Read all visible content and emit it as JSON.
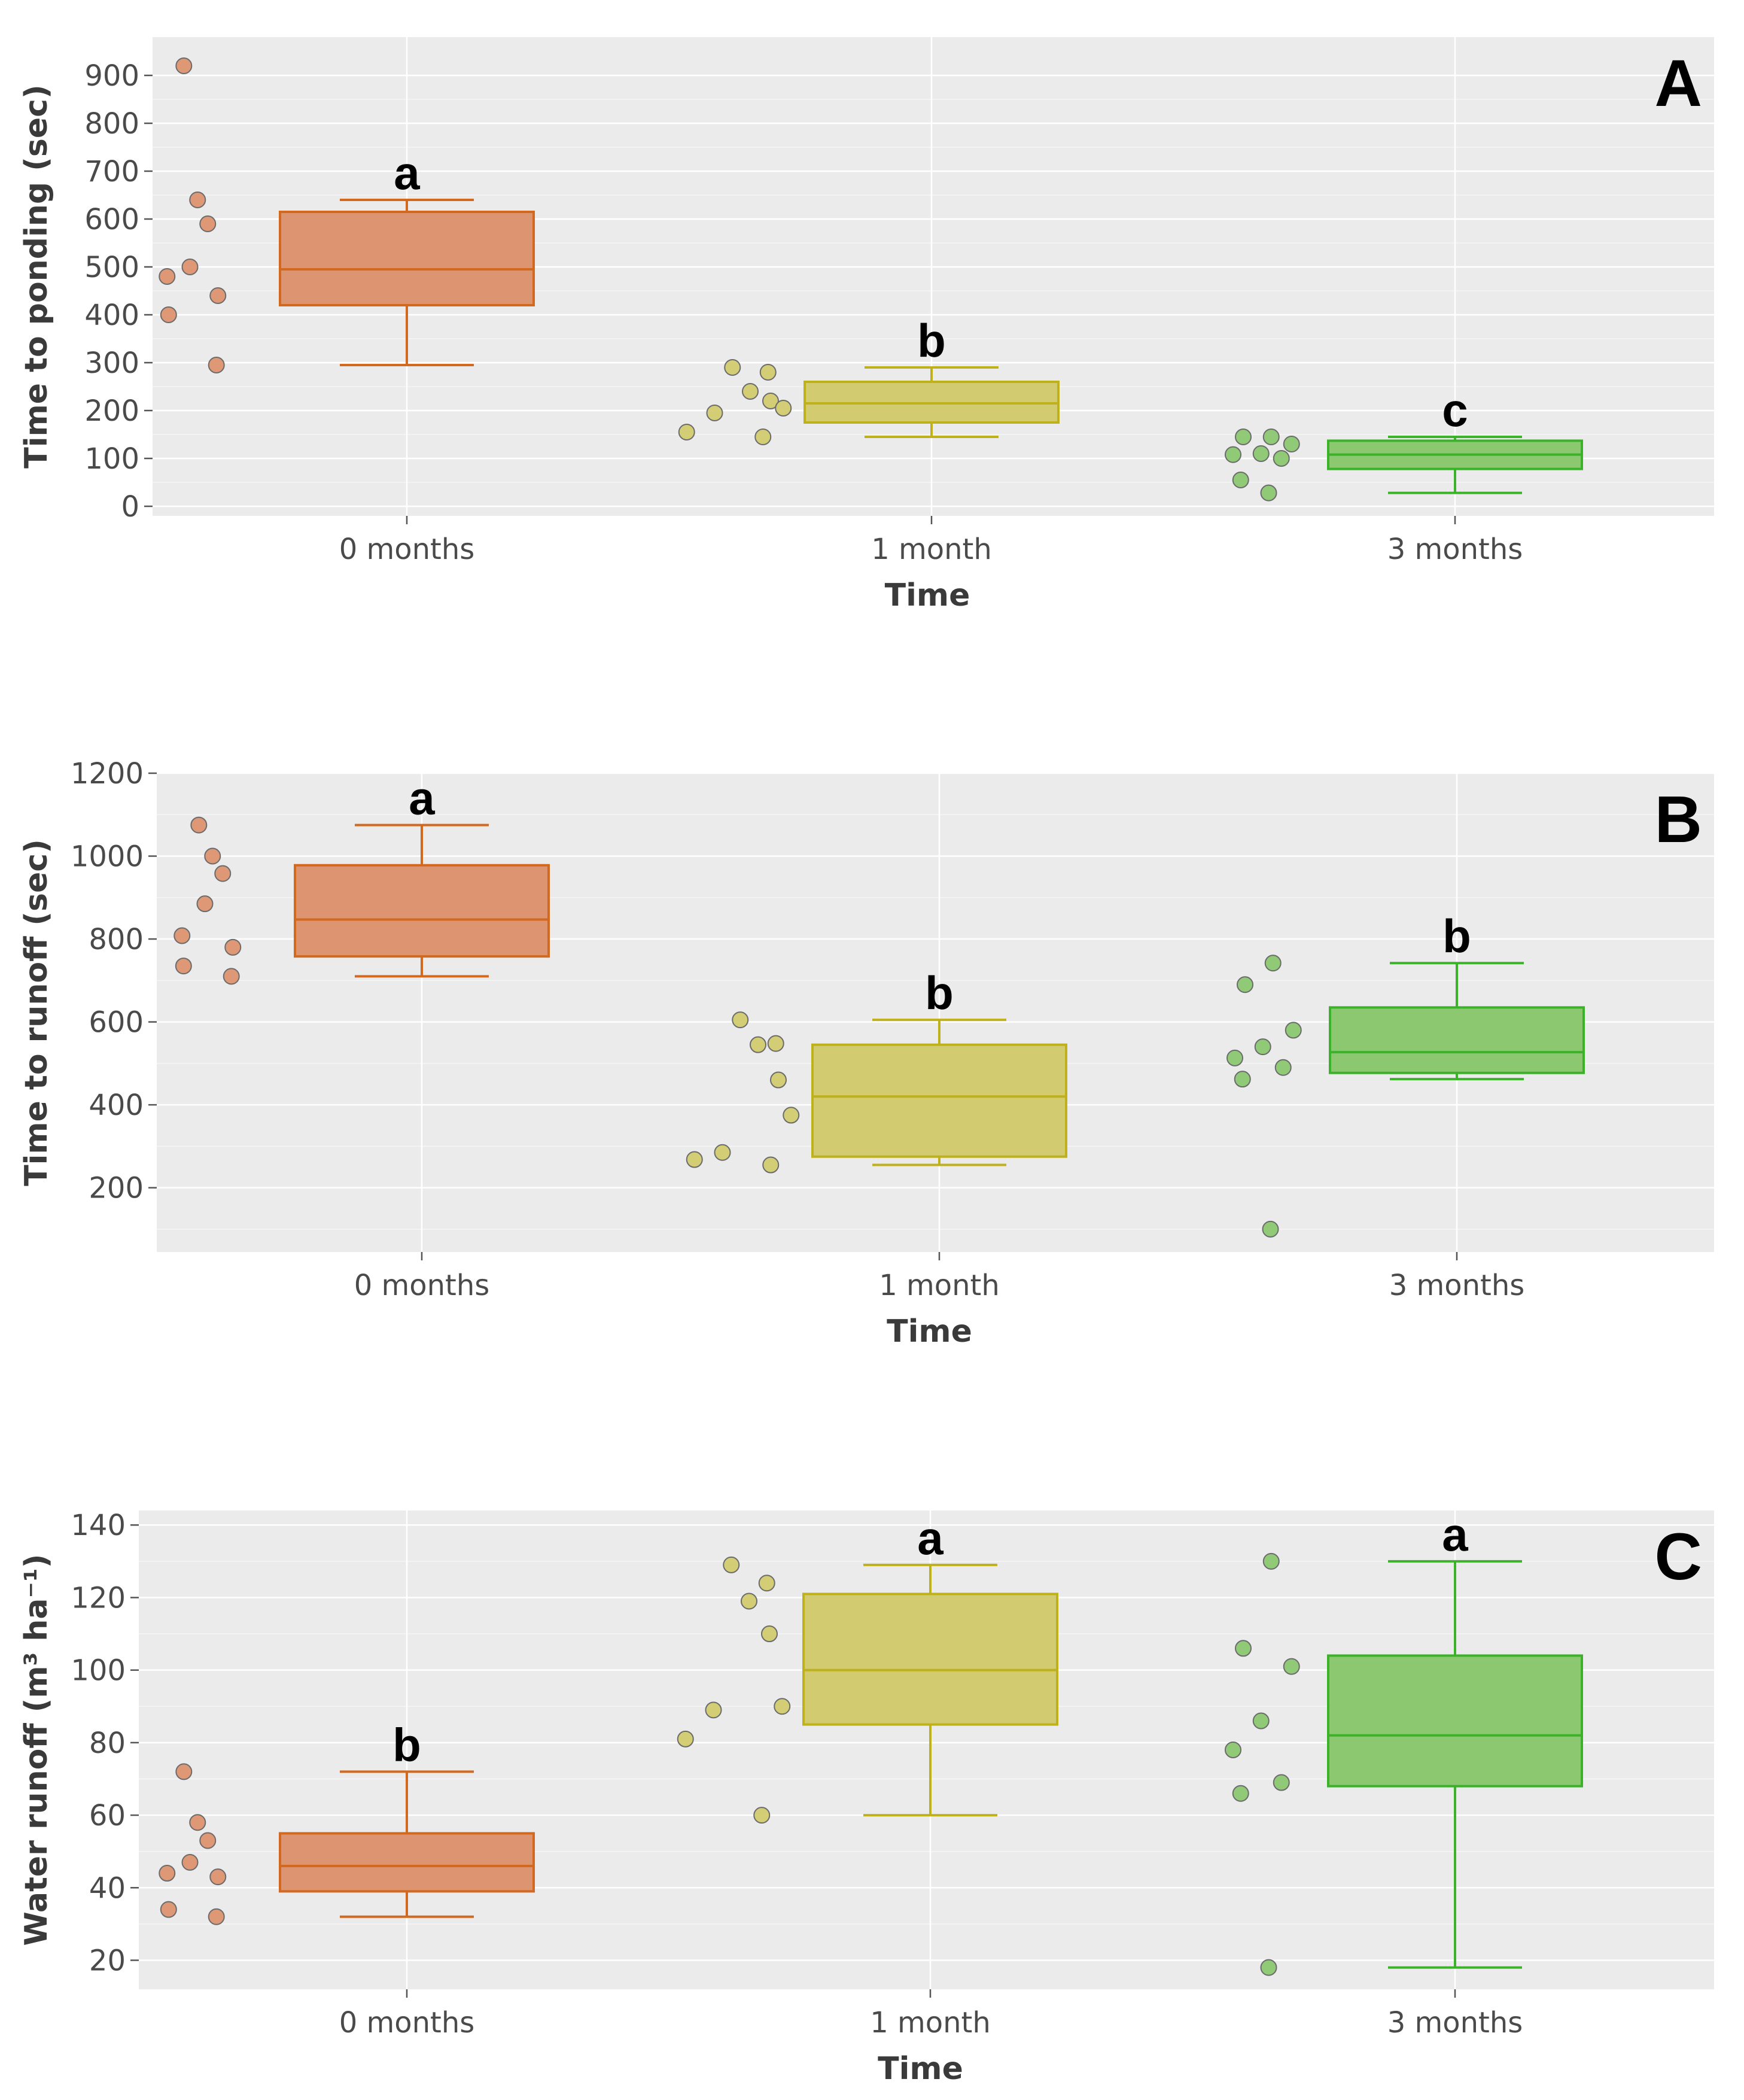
{
  "chart_data": [
    {
      "type": "box",
      "panel_label": "A",
      "title": "",
      "xlabel": "Time",
      "ylabel": "Time to ponding (sec)",
      "ylim": [
        -20,
        980
      ],
      "yticks": [
        0,
        100,
        200,
        300,
        400,
        500,
        600,
        700,
        800,
        900
      ],
      "categories": [
        "0 months",
        "1 month",
        "3 months"
      ],
      "groups": [
        {
          "name": "0 months",
          "color": "#D2691E",
          "fill": "#DD9470",
          "points": [
            920,
            640,
            590,
            500,
            480,
            440,
            400,
            295
          ],
          "box": {
            "min": 295,
            "q1": 420,
            "median": 495,
            "q3": 615,
            "max": 640
          },
          "sig": "a"
        },
        {
          "name": "1 month",
          "color": "#BFB11C",
          "fill": "#D2CB70",
          "points": [
            290,
            280,
            240,
            220,
            205,
            195,
            155,
            145
          ],
          "box": {
            "min": 145,
            "q1": 175,
            "median": 215,
            "q3": 260,
            "max": 290
          },
          "sig": "b"
        },
        {
          "name": "3 months",
          "color": "#3CB22A",
          "fill": "#8BC870",
          "points": [
            145,
            145,
            130,
            110,
            108,
            100,
            55,
            28
          ],
          "box": {
            "min": 28,
            "q1": 78,
            "median": 108,
            "q3": 137,
            "max": 145
          },
          "sig": "c"
        }
      ]
    },
    {
      "type": "box",
      "panel_label": "B",
      "title": "",
      "xlabel": "Time",
      "ylabel": "Time to runoff (sec)",
      "ylim": [
        45,
        1200
      ],
      "yticks": [
        200,
        400,
        600,
        800,
        1000,
        1200
      ],
      "categories": [
        "0 months",
        "1 month",
        "3 months"
      ],
      "groups": [
        {
          "name": "0 months",
          "color": "#D2691E",
          "fill": "#DD9470",
          "points": [
            1075,
            1000,
            958,
            885,
            808,
            780,
            735,
            710
          ],
          "box": {
            "min": 710,
            "q1": 758,
            "median": 847,
            "q3": 978,
            "max": 1075
          },
          "sig": "a"
        },
        {
          "name": "1 month",
          "color": "#BFB11C",
          "fill": "#D2CB70",
          "points": [
            605,
            548,
            545,
            460,
            375,
            285,
            268,
            255
          ],
          "box": {
            "min": 255,
            "q1": 275,
            "median": 420,
            "q3": 545,
            "max": 605
          },
          "sig": "b"
        },
        {
          "name": "3 months",
          "color": "#3CB22A",
          "fill": "#8BC870",
          "points": [
            742,
            690,
            580,
            540,
            513,
            490,
            462,
            100
          ],
          "box": {
            "min": 462,
            "q1": 477,
            "median": 527,
            "q3": 635,
            "max": 742
          },
          "sig": "b"
        }
      ]
    },
    {
      "type": "box",
      "panel_label": "C",
      "title": "",
      "xlabel": "Time",
      "ylabel": "Water runoff (m³ ha⁻¹)",
      "ylim": [
        12,
        144
      ],
      "yticks": [
        20,
        40,
        60,
        80,
        100,
        120,
        140
      ],
      "categories": [
        "0 months",
        "1 month",
        "3 months"
      ],
      "groups": [
        {
          "name": "0 months",
          "color": "#D2691E",
          "fill": "#DD9470",
          "points": [
            72,
            58,
            53,
            47,
            44,
            43,
            34,
            32
          ],
          "box": {
            "min": 32,
            "q1": 39,
            "median": 46,
            "q3": 55,
            "max": 72
          },
          "sig": "b"
        },
        {
          "name": "1 month",
          "color": "#BFB11C",
          "fill": "#D2CB70",
          "points": [
            129,
            124,
            119,
            110,
            90,
            89,
            81,
            60
          ],
          "box": {
            "min": 60,
            "q1": 85,
            "median": 100,
            "q3": 121,
            "max": 129
          },
          "sig": "a"
        },
        {
          "name": "3 months",
          "color": "#3CB22A",
          "fill": "#8BC870",
          "points": [
            130,
            106,
            101,
            86,
            78,
            69,
            66,
            18
          ],
          "box": {
            "min": 18,
            "q1": 68,
            "median": 82,
            "q3": 104,
            "max": 130
          },
          "sig": "a"
        }
      ]
    }
  ]
}
